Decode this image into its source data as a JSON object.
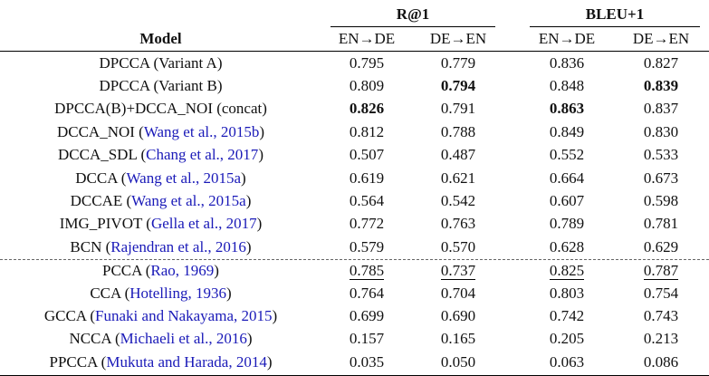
{
  "colors": {
    "citation_link": "#1a1ab8"
  },
  "header": {
    "model_label": "Model",
    "groups": [
      {
        "label": "R@1"
      },
      {
        "label": "BLEU+1"
      }
    ],
    "subcolumns": [
      "EN→DE",
      "DE→EN",
      "EN→DE",
      "DE→EN"
    ]
  },
  "rows": [
    {
      "pre": "DPCCA (Variant A)",
      "cite": "",
      "post": "",
      "v": [
        "0.795",
        "0.779",
        "0.836",
        "0.827"
      ]
    },
    {
      "pre": "DPCCA (Variant B)",
      "cite": "",
      "post": "",
      "v": [
        "0.809",
        "0.794",
        "0.848",
        "0.839"
      ]
    },
    {
      "pre": "DPCCA(B)+DCCA_NOI (concat)",
      "cite": "",
      "post": "",
      "v": [
        "0.826",
        "0.791",
        "0.863",
        "0.837"
      ]
    },
    {
      "pre": "DCCA_NOI (",
      "cite": "Wang et al., 2015b",
      "post": ")",
      "v": [
        "0.812",
        "0.788",
        "0.849",
        "0.830"
      ]
    },
    {
      "pre": "DCCA_SDL (",
      "cite": "Chang et al., 2017",
      "post": ")",
      "v": [
        "0.507",
        "0.487",
        "0.552",
        "0.533"
      ]
    },
    {
      "pre": "DCCA (",
      "cite": "Wang et al., 2015a",
      "post": ")",
      "v": [
        "0.619",
        "0.621",
        "0.664",
        "0.673"
      ]
    },
    {
      "pre": "DCCAE (",
      "cite": "Wang et al., 2015a",
      "post": ")",
      "v": [
        "0.564",
        "0.542",
        "0.607",
        "0.598"
      ]
    },
    {
      "pre": "IMG_PIVOT (",
      "cite": "Gella et al., 2017",
      "post": ")",
      "v": [
        "0.772",
        "0.763",
        "0.789",
        "0.781"
      ]
    },
    {
      "pre": "BCN (",
      "cite": "Rajendran et al., 2016",
      "post": ")",
      "v": [
        "0.579",
        "0.570",
        "0.628",
        "0.629"
      ]
    },
    {
      "pre": "PCCA (",
      "cite": "Rao, 1969",
      "post": ")",
      "v": [
        "0.785",
        "0.737",
        "0.825",
        "0.787"
      ]
    },
    {
      "pre": "CCA (",
      "cite": "Hotelling, 1936",
      "post": ")",
      "v": [
        "0.764",
        "0.704",
        "0.803",
        "0.754"
      ]
    },
    {
      "pre": "GCCA (",
      "cite": "Funaki and Nakayama, 2015",
      "post": ")",
      "v": [
        "0.699",
        "0.690",
        "0.742",
        "0.743"
      ]
    },
    {
      "pre": "NCCA (",
      "cite": "Michaeli et al., 2016",
      "post": ")",
      "v": [
        "0.157",
        "0.165",
        "0.205",
        "0.213"
      ]
    },
    {
      "pre": "PPCCA (",
      "cite": "Mukuta and Harada, 2014",
      "post": ")",
      "v": [
        "0.035",
        "0.050",
        "0.063",
        "0.086"
      ]
    }
  ]
}
